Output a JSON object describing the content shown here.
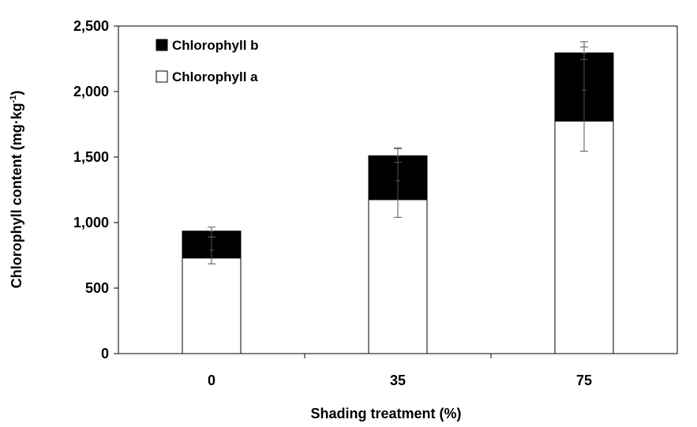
{
  "chart_data": {
    "type": "bar",
    "stacked": true,
    "categories": [
      "0",
      "35",
      "75"
    ],
    "series": [
      {
        "name": "Chlorophyll a",
        "values": [
          730,
          1175,
          1775
        ],
        "color": "#ffffff"
      },
      {
        "name": "Chlorophyll b",
        "values": [
          205,
          335,
          520
        ],
        "color": "#000000"
      }
    ],
    "error_bars": [
      {
        "series": "Chlorophyll a",
        "center": [
          790,
          1320,
          2010
        ],
        "low": [
          685,
          1040,
          1545
        ],
        "high": [
          890,
          1570,
          2340
        ]
      },
      {
        "series": "Chlorophyll b",
        "center": [
          935,
          1510,
          2295
        ],
        "low": [
          890,
          1460,
          2245
        ],
        "high": [
          965,
          1565,
          2380
        ]
      }
    ],
    "ylim": [
      0,
      2500
    ],
    "yticks": [
      0,
      500,
      1000,
      1500,
      2000,
      2500
    ],
    "ytick_labels": [
      "0",
      "500",
      "1,000",
      "1,500",
      "2,000",
      "2,500"
    ],
    "xlabel": "Shading treatment (%)",
    "ylabel_main": "Chlorophyll content (mg·kg",
    "ylabel_sup": "-1",
    "ylabel_end": ")",
    "legend": {
      "position": "top-left",
      "entries": [
        "Chlorophyll b",
        "Chlorophyll a"
      ]
    },
    "title": ""
  }
}
